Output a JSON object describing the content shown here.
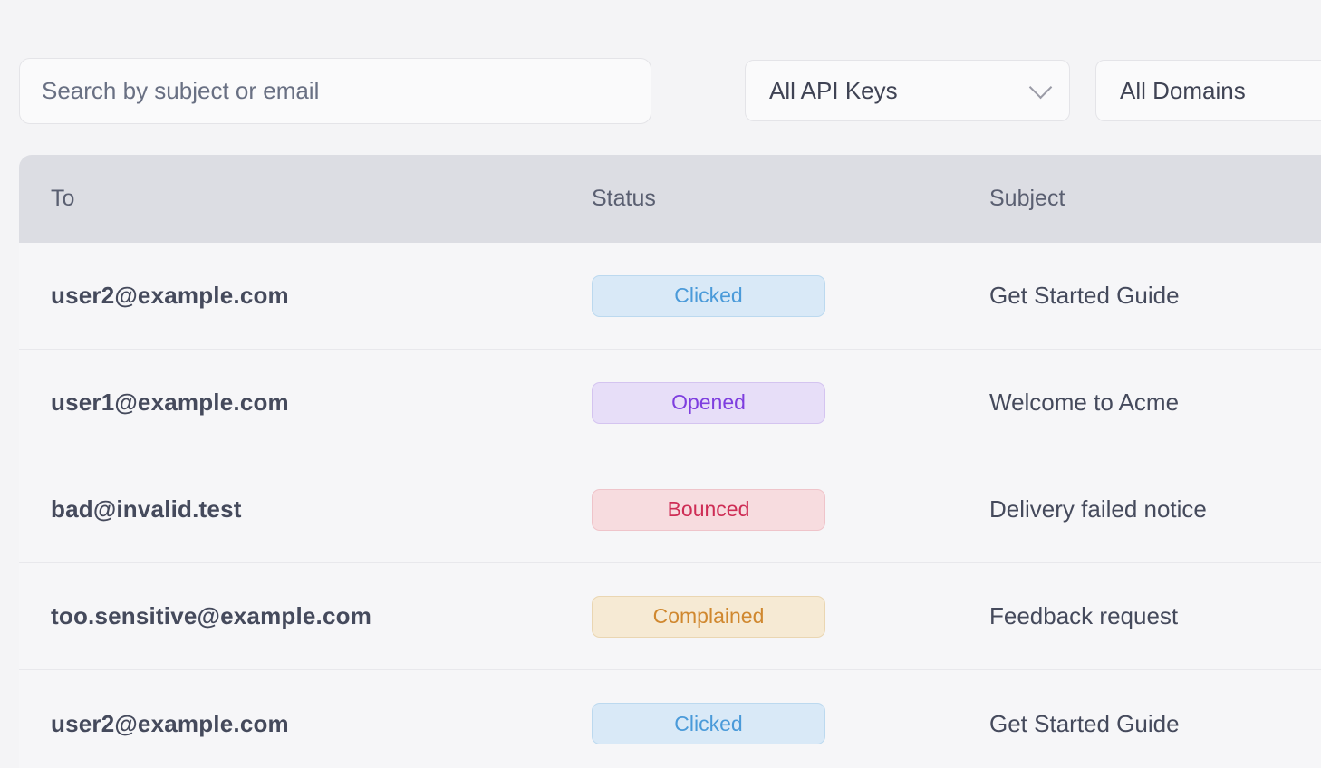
{
  "filters": {
    "search": {
      "placeholder": "Search by subject or email"
    },
    "api_keys": {
      "value": "All API Keys"
    },
    "domains": {
      "value": "All Domains"
    }
  },
  "table": {
    "columns": {
      "to": "To",
      "status": "Status",
      "subject": "Subject"
    },
    "rows": [
      {
        "to": "user2@example.com",
        "status": "Clicked",
        "subject": "Get Started Guide"
      },
      {
        "to": "user1@example.com",
        "status": "Opened",
        "subject": "Welcome to Acme"
      },
      {
        "to": "bad@invalid.test",
        "status": "Bounced",
        "subject": "Delivery failed notice"
      },
      {
        "to": "too.sensitive@example.com",
        "status": "Complained",
        "subject": "Feedback request"
      },
      {
        "to": "user2@example.com",
        "status": "Clicked",
        "subject": "Get Started Guide"
      }
    ]
  },
  "status_colors": {
    "Clicked": {
      "bg": "#d9e9f7",
      "border": "#bcd9ef",
      "text": "#4a9ad9"
    },
    "Opened": {
      "bg": "#e7def8",
      "border": "#d4c4f0",
      "text": "#7e3edf"
    },
    "Bounced": {
      "bg": "#f7dcdf",
      "border": "#efc4ca",
      "text": "#ce2d55"
    },
    "Complained": {
      "bg": "#f6ead4",
      "border": "#ead6b2",
      "text": "#d0882f"
    }
  }
}
